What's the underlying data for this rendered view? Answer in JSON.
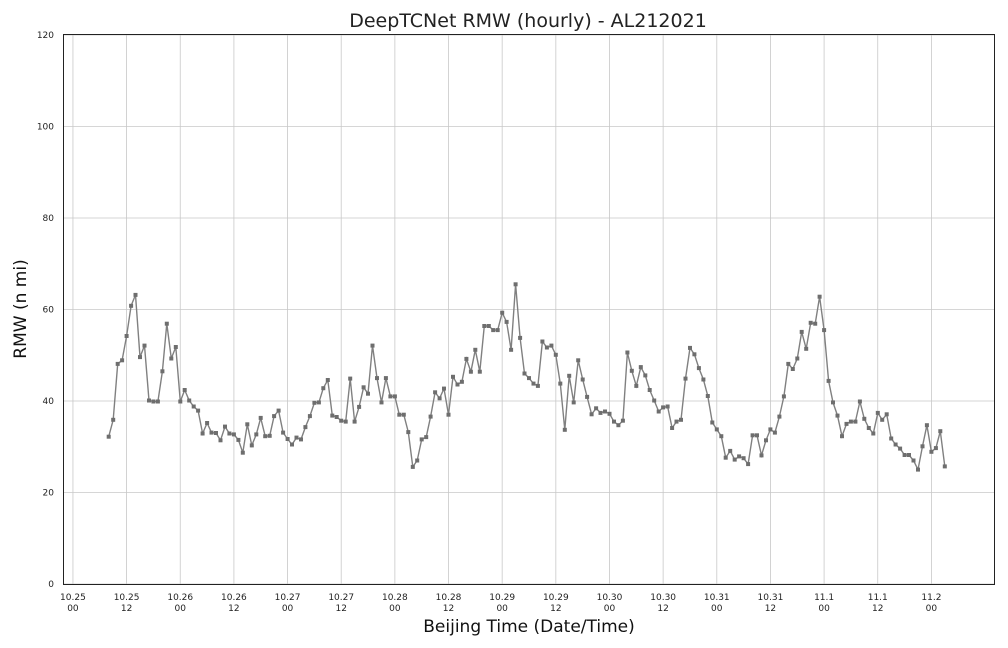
{
  "chart_data": {
    "type": "line",
    "title": "DeepTCNet RMW (hourly) - AL212021",
    "xlabel": "Beijing Time (Date/Time)",
    "ylabel": "RMW (n mi)",
    "ylim": [
      0,
      120
    ],
    "yticks": [
      0,
      20,
      40,
      60,
      80,
      100,
      120
    ],
    "xlim_hours": [
      -2,
      206
    ],
    "xticks": [
      {
        "date": "10.25",
        "time": "00"
      },
      {
        "date": "10.25",
        "time": "12"
      },
      {
        "date": "10.26",
        "time": "00"
      },
      {
        "date": "10.26",
        "time": "12"
      },
      {
        "date": "10.27",
        "time": "00"
      },
      {
        "date": "10.27",
        "time": "12"
      },
      {
        "date": "10.28",
        "time": "00"
      },
      {
        "date": "10.28",
        "time": "12"
      },
      {
        "date": "10.29",
        "time": "00"
      },
      {
        "date": "10.29",
        "time": "12"
      },
      {
        "date": "10.30",
        "time": "00"
      },
      {
        "date": "10.30",
        "time": "12"
      },
      {
        "date": "10.31",
        "time": "00"
      },
      {
        "date": "10.31",
        "time": "12"
      },
      {
        "date": "11.1",
        "time": "00"
      },
      {
        "date": "11.1",
        "time": "12"
      },
      {
        "date": "11.2",
        "time": "00"
      }
    ],
    "grid": true,
    "marker": "square",
    "color": "#808080",
    "series": [
      {
        "start_hour": 8,
        "step_hours": 1,
        "values": [
          32.2,
          35.9,
          48.1,
          48.9,
          54.2,
          60.8,
          63.2,
          49.6,
          52.1,
          40.1,
          39.9,
          39.9,
          46.5,
          56.9,
          49.3,
          51.8,
          39.9,
          42.4,
          40.1,
          38.8,
          37.9,
          32.9,
          35.2,
          33.1,
          33.0,
          31.4,
          34.4,
          32.9,
          32.7,
          31.5,
          28.7,
          34.9,
          30.3,
          32.7,
          36.3,
          32.3,
          32.4,
          36.7,
          37.9,
          33.1,
          31.7,
          30.5,
          32.0,
          31.6,
          34.3,
          36.7,
          39.6,
          39.7,
          42.8,
          44.6,
          36.8,
          36.5,
          35.7,
          35.5,
          44.9,
          35.5,
          38.7,
          43.0,
          41.6,
          52.1,
          45.0,
          39.7,
          45.0,
          41.0,
          41.0,
          37.0,
          37.0,
          33.2,
          25.6,
          27.0,
          31.6,
          32.1,
          36.6,
          41.9,
          40.6,
          42.7,
          37.0,
          45.3,
          43.6,
          44.2,
          49.2,
          46.4,
          51.2,
          46.4,
          56.4,
          56.4,
          55.5,
          55.5,
          59.3,
          57.3,
          51.2,
          65.5,
          53.8,
          46.0,
          45.0,
          43.8,
          43.3,
          53.0,
          51.7,
          52.1,
          50.1,
          43.8,
          33.7,
          45.5,
          39.7,
          48.9,
          44.7,
          40.9,
          37.1,
          38.4,
          37.4,
          37.7,
          37.2,
          35.5,
          34.7,
          35.7,
          50.6,
          46.6,
          43.3,
          47.4,
          45.6,
          42.4,
          40.1,
          37.7,
          38.6,
          38.8,
          34.1,
          35.5,
          35.9,
          44.9,
          51.6,
          50.2,
          47.2,
          44.7,
          41.1,
          35.3,
          33.8,
          32.3,
          27.6,
          29.1,
          27.2,
          27.9,
          27.5,
          26.2,
          32.5,
          32.5,
          28.1,
          31.4,
          33.8,
          33.1,
          36.6,
          41.0,
          48.1,
          47.0,
          49.3,
          55.1,
          51.4,
          57.1,
          56.9,
          62.8,
          55.5,
          44.4,
          39.7,
          36.8,
          32.3,
          35.0,
          35.5,
          35.5,
          39.9,
          36.1,
          34.1,
          32.9,
          37.4,
          35.9,
          37.1,
          31.8,
          30.5,
          29.6,
          28.2,
          28.2,
          27.0,
          25.0,
          30.1,
          34.7,
          28.9,
          29.7,
          33.4,
          25.7
        ]
      }
    ]
  }
}
